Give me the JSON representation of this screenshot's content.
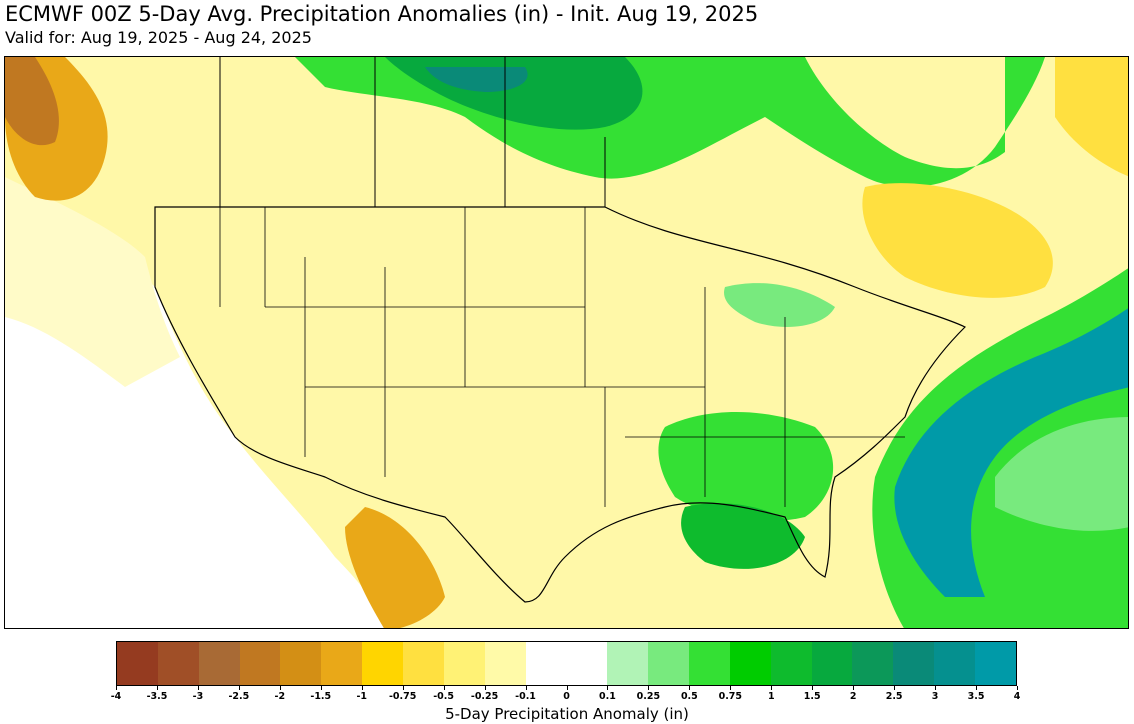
{
  "header": {
    "title": "ECMWF 00Z 5-Day Avg. Precipitation Anomalies (in) - Init. Aug 19, 2025",
    "subtitle": "Valid for: Aug 19, 2025 - Aug 24, 2025"
  },
  "colorbar": {
    "label": "5-Day Precipitation Anomaly (in)",
    "ticks": [
      "-4",
      "-3.5",
      "-3",
      "-2.5",
      "-2",
      "-1.5",
      "-1",
      "-0.75",
      "-0.5",
      "-0.25",
      "-0.1",
      "0",
      "0.1",
      "0.25",
      "0.5",
      "0.75",
      "1",
      "1.5",
      "2",
      "2.5",
      "3",
      "3.5",
      "4"
    ],
    "colors": [
      "#953b20",
      "#a04f27",
      "#a86a35",
      "#c07821",
      "#d38f15",
      "#e9a818",
      "#ffd500",
      "#ffe040",
      "#fff275",
      "#fffaa8",
      "#ffffff",
      "#ffffff",
      "#b1f3b6",
      "#78ea7e",
      "#34e034",
      "#00cc00",
      "#0ebb2d",
      "#07a93e",
      "#0c9859",
      "#0a8a78",
      "#05908f",
      "#009aa8"
    ]
  },
  "map": {
    "ocean_color": "#009aa8",
    "dry_color": "#fff275",
    "wet_color": "#0ebb2d",
    "neutral_color": "#ffffff",
    "border_color": "#000000"
  }
}
